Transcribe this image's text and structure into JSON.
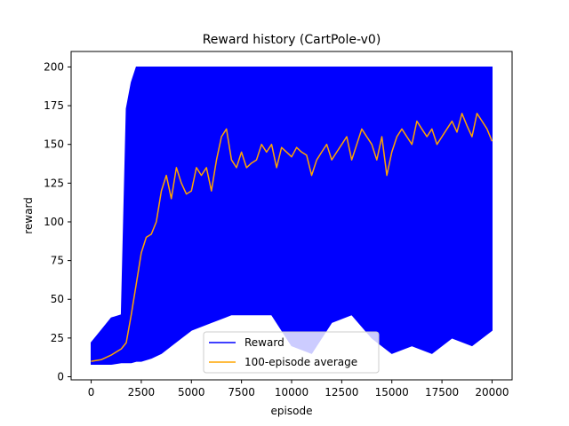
{
  "chart_data": {
    "type": "line",
    "title": "Reward history (CartPole-v0)",
    "xlabel": "episode",
    "ylabel": "reward",
    "xlim": [
      -1000,
      21000
    ],
    "ylim": [
      -2,
      210
    ],
    "x_ticks": [
      0,
      2500,
      5000,
      7500,
      10000,
      12500,
      15000,
      17500,
      20000
    ],
    "y_ticks": [
      0,
      25,
      50,
      75,
      100,
      125,
      150,
      175,
      200
    ],
    "grid": false,
    "legend_position": "lower-center",
    "series": [
      {
        "name": "Reward",
        "color": "#0000ff",
        "x": [
          0,
          500,
          1000,
          1500,
          1750,
          2000,
          2250,
          2500,
          3000,
          3500,
          4000,
          4500,
          5000,
          6000,
          7000,
          8000,
          9000,
          10000,
          11000,
          12000,
          13000,
          14000,
          15000,
          16000,
          17000,
          18000,
          19000,
          20000
        ],
        "max": [
          22,
          30,
          38,
          40,
          173,
          190,
          200,
          200,
          200,
          200,
          200,
          200,
          200,
          200,
          200,
          200,
          200,
          200,
          200,
          200,
          200,
          200,
          200,
          200,
          200,
          200,
          200,
          200
        ],
        "min": [
          8,
          8,
          8,
          9,
          9,
          9,
          10,
          10,
          12,
          15,
          20,
          25,
          30,
          35,
          40,
          40,
          40,
          20,
          15,
          35,
          40,
          25,
          15,
          20,
          15,
          25,
          20,
          30
        ]
      },
      {
        "name": "100-episode average",
        "color": "#ffa500",
        "x": [
          0,
          500,
          1000,
          1500,
          1750,
          2000,
          2250,
          2500,
          2750,
          3000,
          3250,
          3500,
          3750,
          4000,
          4250,
          4500,
          4750,
          5000,
          5250,
          5500,
          5750,
          6000,
          6250,
          6500,
          6750,
          7000,
          7250,
          7500,
          7750,
          8000,
          8250,
          8500,
          8750,
          9000,
          9250,
          9500,
          9750,
          10000,
          10250,
          10500,
          10750,
          11000,
          11250,
          11500,
          11750,
          12000,
          12250,
          12500,
          12750,
          13000,
          13250,
          13500,
          13750,
          14000,
          14250,
          14500,
          14750,
          15000,
          15250,
          15500,
          15750,
          16000,
          16250,
          16500,
          16750,
          17000,
          17250,
          17500,
          17750,
          18000,
          18250,
          18500,
          18750,
          19000,
          19250,
          19500,
          19750,
          20000
        ],
        "y": [
          10,
          11,
          14,
          18,
          22,
          40,
          60,
          80,
          90,
          92,
          100,
          120,
          130,
          115,
          135,
          125,
          118,
          120,
          135,
          130,
          135,
          120,
          140,
          155,
          160,
          140,
          135,
          145,
          135,
          138,
          140,
          150,
          145,
          150,
          135,
          148,
          145,
          142,
          148,
          145,
          143,
          130,
          140,
          145,
          150,
          140,
          145,
          150,
          155,
          140,
          150,
          160,
          155,
          150,
          140,
          155,
          130,
          145,
          155,
          160,
          155,
          150,
          165,
          160,
          155,
          160,
          150,
          155,
          160,
          165,
          158,
          170,
          162,
          155,
          170,
          165,
          160,
          152
        ]
      }
    ]
  }
}
